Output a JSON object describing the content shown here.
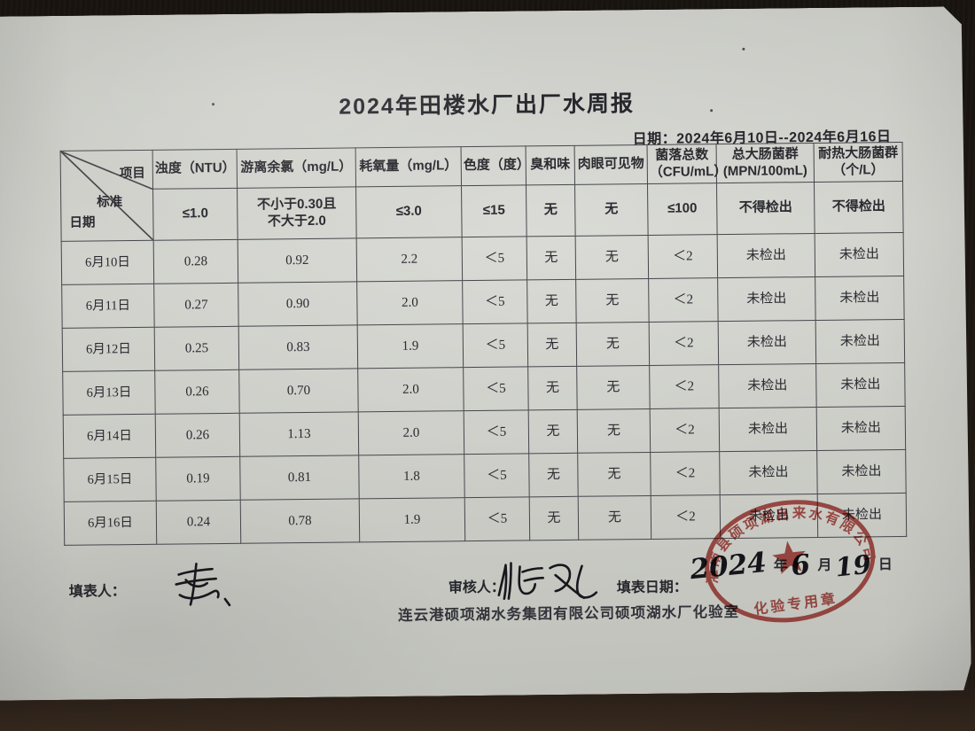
{
  "title": "2024年田楼水厂出厂水周报",
  "date_range": "日期：2024年6月10日--2024年6月16日",
  "table": {
    "corner": {
      "item_label": "项目",
      "standard_label": "标准",
      "date_label": "日期"
    },
    "columns": [
      "浊度（NTU）",
      "游离余氯（mg/L）",
      "耗氧量（mg/L）",
      "色度（度）",
      "臭和味",
      "肉眼可见物",
      "菌落总数\n（CFU/mL）",
      "总大肠菌群\n(MPN/100mL)",
      "耐热大肠菌群\n（个/L）"
    ],
    "standards": [
      "≤1.0",
      "不小于0.30且\n不大于2.0",
      "≤3.0",
      "≤15",
      "无",
      "无",
      "≤100",
      "不得检出",
      "不得检出"
    ],
    "rows": [
      {
        "date": "6月10日",
        "values": [
          "0.28",
          "0.92",
          "2.2",
          "＜5",
          "无",
          "无",
          "＜2",
          "未检出",
          "未检出"
        ]
      },
      {
        "date": "6月11日",
        "values": [
          "0.27",
          "0.90",
          "2.0",
          "＜5",
          "无",
          "无",
          "＜2",
          "未检出",
          "未检出"
        ]
      },
      {
        "date": "6月12日",
        "values": [
          "0.25",
          "0.83",
          "1.9",
          "＜5",
          "无",
          "无",
          "＜2",
          "未检出",
          "未检出"
        ]
      },
      {
        "date": "6月13日",
        "values": [
          "0.26",
          "0.70",
          "2.0",
          "＜5",
          "无",
          "无",
          "＜2",
          "未检出",
          "未检出"
        ]
      },
      {
        "date": "6月14日",
        "values": [
          "0.26",
          "1.13",
          "2.0",
          "＜5",
          "无",
          "无",
          "＜2",
          "未检出",
          "未检出"
        ]
      },
      {
        "date": "6月15日",
        "values": [
          "0.19",
          "0.81",
          "1.8",
          "＜5",
          "无",
          "无",
          "＜2",
          "未检出",
          "未检出"
        ]
      },
      {
        "date": "6月16日",
        "values": [
          "0.24",
          "0.78",
          "1.9",
          "＜5",
          "无",
          "无",
          "＜2",
          "未检出",
          "未检出"
        ]
      }
    ]
  },
  "footer": {
    "filled_by_label": "填表人：",
    "reviewed_by_label": "审核人：",
    "fill_date_label": "填表日期：",
    "fill_date": {
      "year": "2024",
      "year_unit": "年",
      "month": "6",
      "month_unit": "月",
      "day": "19",
      "day_unit": "日"
    },
    "lab_name": "连云港硕项湖水务集团有限公司硕项湖水厂化验室"
  },
  "stamp": {
    "ring_text": "灌南县硕项湖自来水有限公司",
    "bottom_text": "化验专用章",
    "color": "#b5413c"
  }
}
